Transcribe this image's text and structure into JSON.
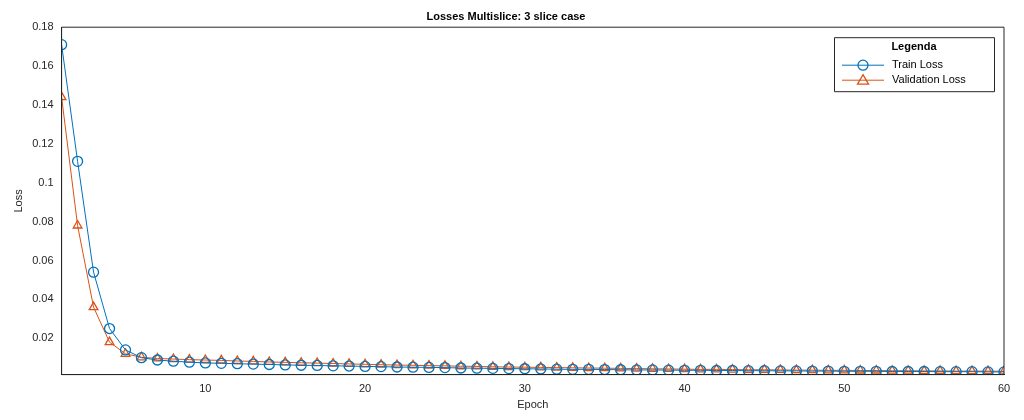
{
  "chart_data": {
    "type": "line",
    "title": "Losses Multislice: 3 slice case",
    "xlabel": "Epoch",
    "ylabel": "Loss",
    "legend_title": "Legenda",
    "legend": "top right",
    "grid": false,
    "x": [
      1,
      2,
      3,
      4,
      5,
      6,
      7,
      8,
      9,
      10,
      11,
      12,
      13,
      14,
      15,
      16,
      17,
      18,
      19,
      20,
      21,
      22,
      23,
      24,
      25,
      26,
      27,
      28,
      29,
      30,
      31,
      32,
      33,
      34,
      35,
      36,
      37,
      38,
      39,
      40,
      41,
      42,
      43,
      44,
      45,
      46,
      47,
      48,
      49,
      50,
      51,
      52,
      53,
      54,
      55,
      56,
      57,
      58,
      59,
      60
    ],
    "xlim": [
      1,
      60
    ],
    "xticks": [
      10,
      20,
      30,
      40,
      50,
      60
    ],
    "ylim": [
      0.0013,
      0.18
    ],
    "yticks": [
      0.02,
      0.04,
      0.06,
      0.08,
      0.1,
      0.12,
      0.14,
      0.16,
      0.18
    ],
    "series": [
      {
        "name": "Train Loss",
        "color": "#0072bd",
        "marker": "circle",
        "values": [
          0.171,
          0.111,
          0.054,
          0.025,
          0.014,
          0.01,
          0.0088,
          0.0082,
          0.0077,
          0.0073,
          0.0071,
          0.0069,
          0.0067,
          0.0065,
          0.0063,
          0.0061,
          0.006,
          0.0058,
          0.0057,
          0.0055,
          0.0054,
          0.0052,
          0.0051,
          0.005,
          0.0049,
          0.0047,
          0.0046,
          0.0045,
          0.0044,
          0.0043,
          0.0042,
          0.0041,
          0.004,
          0.004,
          0.0039,
          0.0038,
          0.0037,
          0.0037,
          0.0036,
          0.0035,
          0.0035,
          0.0034,
          0.0034,
          0.0033,
          0.0033,
          0.0032,
          0.0032,
          0.0031,
          0.0031,
          0.003,
          0.003,
          0.003,
          0.0029,
          0.0029,
          0.0029,
          0.0028,
          0.0028,
          0.0028,
          0.0027,
          0.0027
        ]
      },
      {
        "name": "Validation Loss",
        "color": "#d95319",
        "marker": "triangle",
        "values": [
          0.144,
          0.078,
          0.036,
          0.018,
          0.012,
          0.0102,
          0.0096,
          0.0093,
          0.009,
          0.0088,
          0.0086,
          0.0083,
          0.0081,
          0.0078,
          0.0076,
          0.0074,
          0.0072,
          0.007,
          0.0068,
          0.0066,
          0.0064,
          0.0062,
          0.0061,
          0.0059,
          0.0058,
          0.0056,
          0.0055,
          0.0053,
          0.0052,
          0.0051,
          0.005,
          0.0049,
          0.0048,
          0.0047,
          0.0046,
          0.0045,
          0.0044,
          0.0043,
          0.0042,
          0.0041,
          0.004,
          0.004,
          0.0039,
          0.0038,
          0.0038,
          0.0037,
          0.0036,
          0.0036,
          0.0035,
          0.0035,
          0.0034,
          0.0034,
          0.0033,
          0.0033,
          0.0032,
          0.0032,
          0.0031,
          0.0031,
          0.0031,
          0.003
        ]
      }
    ]
  }
}
